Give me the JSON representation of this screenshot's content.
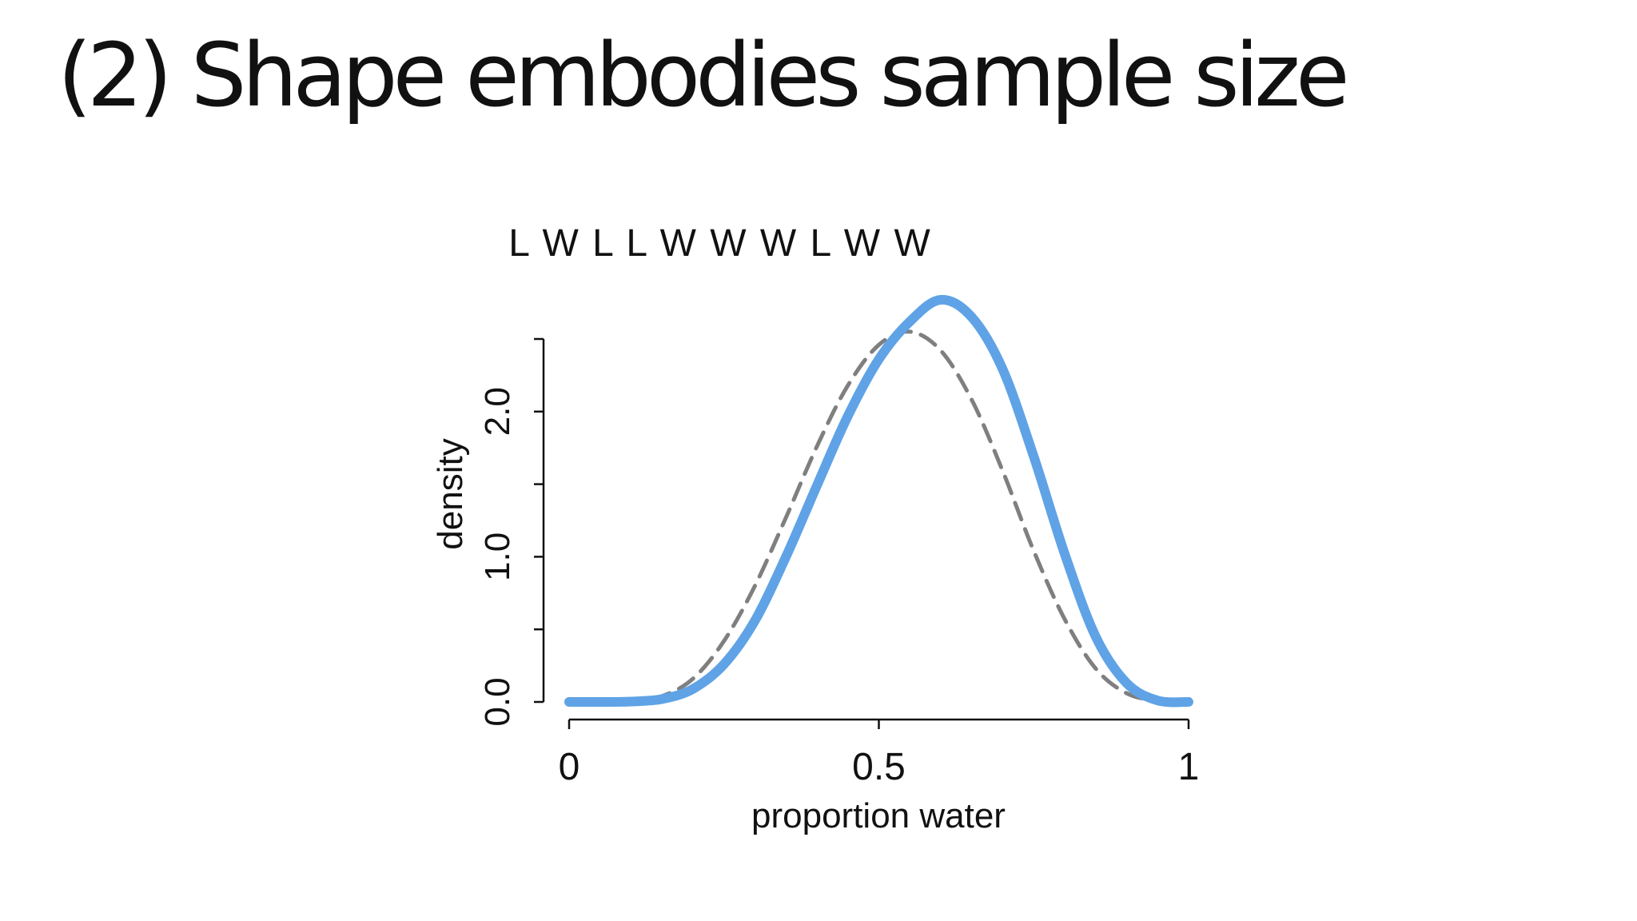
{
  "slide": {
    "title": "(2) Shape embodies sample size"
  },
  "colors": {
    "posterior": "#5fa3e6",
    "prior": "#7f7f7f",
    "axis": "#111111"
  },
  "chart_data": {
    "type": "line",
    "title": "L W L L W W W L W W",
    "xlabel": "proportion water",
    "ylabel": "density",
    "xlim": [
      0,
      1
    ],
    "ylim": [
      0,
      2.5
    ],
    "x_ticks": [
      0,
      0.5,
      1
    ],
    "x_tick_labels": [
      "0",
      "0.5",
      "1"
    ],
    "y_ticks": [
      0,
      0.5,
      1,
      1.5,
      2,
      2.5
    ],
    "y_tick_labels": [
      "0.0",
      "",
      "1.0",
      "",
      "2.0",
      ""
    ],
    "grid": false,
    "legend": "none",
    "series": [
      {
        "style": "solid",
        "x": [
          0.0,
          0.05,
          0.1,
          0.15,
          0.2,
          0.25,
          0.3,
          0.35,
          0.4,
          0.45,
          0.5,
          0.55,
          0.6,
          0.65,
          0.7,
          0.75,
          0.8,
          0.85,
          0.9,
          0.95,
          1.0
        ],
        "y": [
          0.0,
          0.0,
          0.003,
          0.02,
          0.09,
          0.26,
          0.56,
          1.0,
          1.49,
          1.97,
          2.36,
          2.62,
          2.77,
          2.65,
          2.29,
          1.69,
          1.02,
          0.45,
          0.13,
          0.01,
          0.0
        ]
      },
      {
        "style": "dashed",
        "x": [
          0.0,
          0.05,
          0.1,
          0.15,
          0.2,
          0.25,
          0.3,
          0.35,
          0.4,
          0.45,
          0.5,
          0.55,
          0.6,
          0.65,
          0.7,
          0.75,
          0.8,
          0.85,
          0.9,
          0.95,
          1.0
        ],
        "y": [
          0.0,
          0.0,
          0.01,
          0.04,
          0.16,
          0.42,
          0.8,
          1.27,
          1.76,
          2.18,
          2.46,
          2.55,
          2.42,
          2.08,
          1.59,
          1.04,
          0.57,
          0.23,
          0.06,
          0.01,
          0.0
        ]
      }
    ]
  }
}
